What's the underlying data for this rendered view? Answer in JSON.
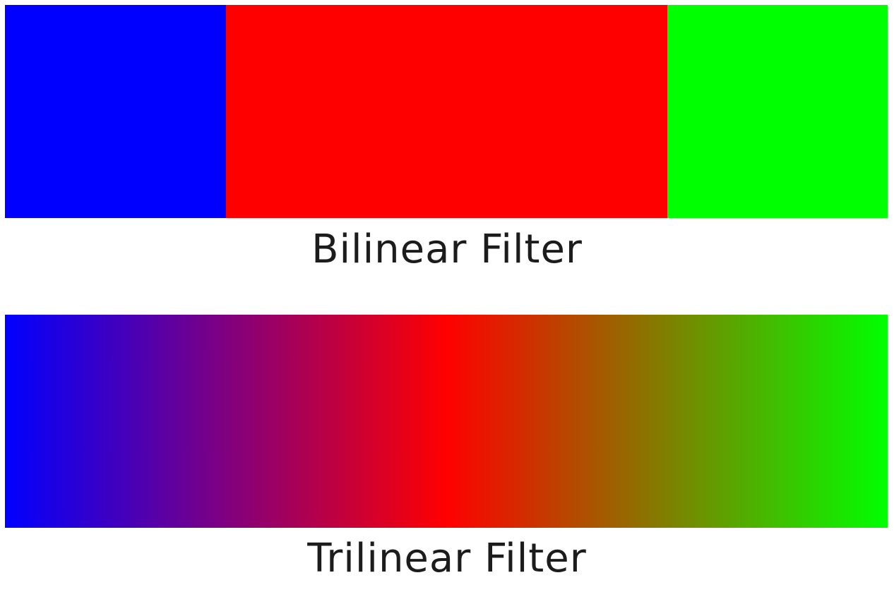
{
  "panels": {
    "bilinear": {
      "caption": "Bilinear Filter",
      "segments": [
        {
          "color": "#0000ff",
          "share": 0.25
        },
        {
          "color": "#ff0000",
          "share": 0.5
        },
        {
          "color": "#00ff00",
          "share": 0.25
        }
      ]
    },
    "trilinear": {
      "caption": "Trilinear Filter",
      "gradient_stops": [
        {
          "color": "#0000ff",
          "at": 0.0
        },
        {
          "color": "#ff0000",
          "at": 0.5
        },
        {
          "color": "#00ff00",
          "at": 1.0
        }
      ]
    }
  }
}
